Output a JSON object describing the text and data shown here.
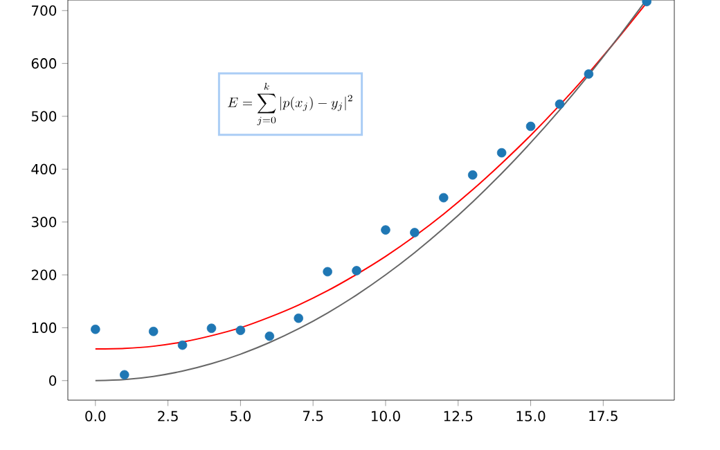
{
  "chart_data": {
    "type": "scatter",
    "xlim": [
      -0.95,
      19.95
    ],
    "ylim": [
      -37,
      720
    ],
    "xticks": [
      {
        "value": 0,
        "label": "0.0"
      },
      {
        "value": 2.5,
        "label": "2.5"
      },
      {
        "value": 5,
        "label": "5.0"
      },
      {
        "value": 7.5,
        "label": "7.5"
      },
      {
        "value": 10,
        "label": "10.0"
      },
      {
        "value": 12.5,
        "label": "12.5"
      },
      {
        "value": 15,
        "label": "15.0"
      },
      {
        "value": 17.5,
        "label": "17.5"
      }
    ],
    "yticks": [
      0,
      100,
      200,
      300,
      400,
      500,
      600,
      700
    ],
    "grid": false,
    "annotations": [
      "E=\\sum_{j=0}^{k}|p(x_j)-y_j|^2"
    ],
    "series": [
      {
        "color": "#1f77b4",
        "marker": "circle",
        "x": [
          0,
          1,
          2,
          3,
          4,
          5,
          6,
          7,
          8,
          9,
          10,
          11,
          12,
          13,
          14,
          15,
          16,
          17,
          19
        ],
        "values": [
          97,
          11,
          93,
          67,
          99,
          95,
          84,
          118,
          206,
          208,
          285,
          280,
          346,
          389,
          431,
          481,
          523,
          580,
          717
        ]
      },
      {
        "type": "line",
        "color": "#ff0000",
        "x": [
          0,
          1,
          2,
          3,
          4,
          5,
          6,
          7,
          8,
          9,
          10,
          11,
          12,
          13,
          14,
          15,
          16,
          17,
          18,
          19
        ],
        "values": [
          60,
          61,
          65,
          73,
          85,
          100,
          120,
          143,
          170,
          201,
          235,
          273,
          315,
          361,
          411,
          464,
          521,
          582,
          647,
          715
        ]
      },
      {
        "type": "line",
        "color": "#666666",
        "x": [
          0,
          1,
          2,
          3,
          4,
          5,
          6,
          7,
          8,
          9,
          10,
          11,
          12,
          13,
          14,
          15,
          16,
          17,
          18,
          18.9
        ],
        "values": [
          0,
          2,
          8,
          18,
          32,
          50,
          72,
          98,
          128,
          162,
          200,
          242,
          288,
          338,
          392,
          450,
          512,
          578,
          648,
          714
        ]
      }
    ]
  }
}
